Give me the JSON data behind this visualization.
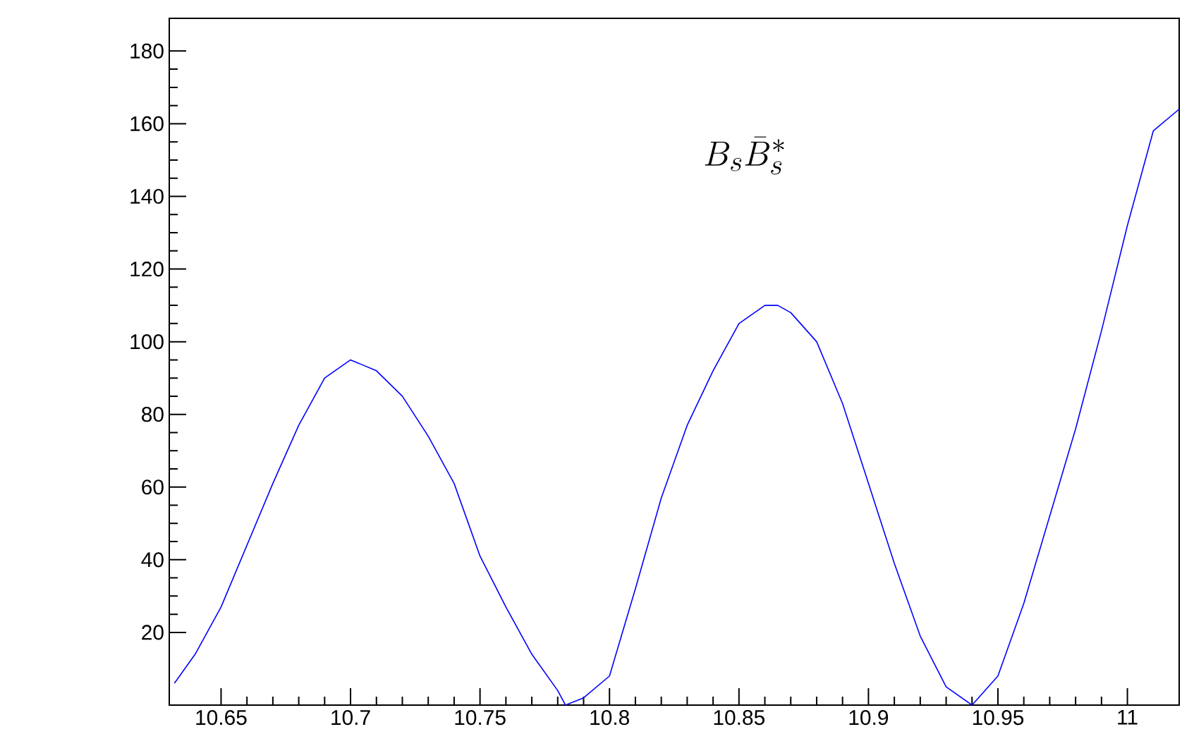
{
  "chart_data": {
    "type": "line",
    "x": [
      10.632,
      10.64,
      10.65,
      10.66,
      10.67,
      10.68,
      10.69,
      10.7,
      10.71,
      10.72,
      10.73,
      10.74,
      10.75,
      10.76,
      10.77,
      10.78,
      10.783,
      10.79,
      10.8,
      10.81,
      10.82,
      10.83,
      10.84,
      10.85,
      10.86,
      10.865,
      10.87,
      10.88,
      10.89,
      10.9,
      10.91,
      10.92,
      10.93,
      10.94,
      10.95,
      10.96,
      10.97,
      10.98,
      10.99,
      11.0,
      11.01,
      11.02
    ],
    "series": [
      {
        "color": "#0000ff",
        "values": [
          6,
          14,
          27,
          44,
          61,
          77,
          90,
          95,
          92,
          85,
          74,
          61,
          41,
          27,
          14,
          4,
          0,
          2,
          8,
          32,
          57,
          77,
          92,
          105,
          110,
          110,
          108,
          100,
          83,
          61,
          39,
          19,
          5,
          0,
          8,
          28,
          52,
          76,
          103,
          132,
          158,
          164
        ]
      }
    ],
    "xlim": [
      10.63,
      11.02
    ],
    "ylim": [
      0,
      189
    ],
    "xticks": [
      10.65,
      10.7,
      10.75,
      10.8,
      10.85,
      10.9,
      10.95,
      11
    ],
    "yticks": [
      20,
      40,
      60,
      80,
      100,
      120,
      140,
      160,
      180
    ],
    "annotations": [
      "B_s\\bar{B}_s^*"
    ],
    "grid": false,
    "marker": "none",
    "line_style": "solid"
  }
}
